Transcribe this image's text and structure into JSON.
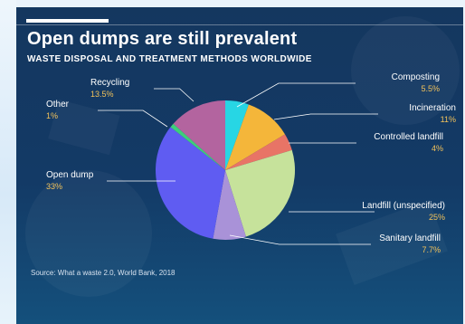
{
  "header": {
    "title": "Open dumps are still prevalent",
    "subtitle": "WASTE DISPOSAL AND TREATMENT METHODS WORLDWIDE"
  },
  "footer": {
    "source": "Source: What a waste 2.0, World Bank, 2018"
  },
  "colors": {
    "background": "#14375f",
    "label_name": "#ffffff",
    "label_value": "#f2c25a",
    "leader_line": "#ffffff"
  },
  "chart_data": {
    "type": "pie",
    "title": "Open dumps are still prevalent",
    "subtitle": "WASTE DISPOSAL AND TREATMENT METHODS WORLDWIDE",
    "unit": "%",
    "slices": [
      {
        "label": "Composting",
        "value": 5.5,
        "display": "5.5%",
        "color": "#27d6e4"
      },
      {
        "label": "Incineration",
        "value": 11,
        "display": "11%",
        "color": "#f4b63a"
      },
      {
        "label": "Controlled landfill",
        "value": 4,
        "display": "4%",
        "color": "#e87466"
      },
      {
        "label": "Landfill (unspecified)",
        "value": 25,
        "display": "25%",
        "color": "#c6e29b"
      },
      {
        "label": "Sanitary landfill",
        "value": 7.7,
        "display": "7.7%",
        "color": "#a992d8"
      },
      {
        "label": "Open dump",
        "value": 33,
        "display": "33%",
        "color": "#5f5cf2"
      },
      {
        "label": "Other",
        "value": 1,
        "display": "1%",
        "color": "#3ccf7a"
      },
      {
        "label": "Recycling",
        "value": 13.5,
        "display": "13.5%",
        "color": "#b3649f"
      }
    ]
  }
}
